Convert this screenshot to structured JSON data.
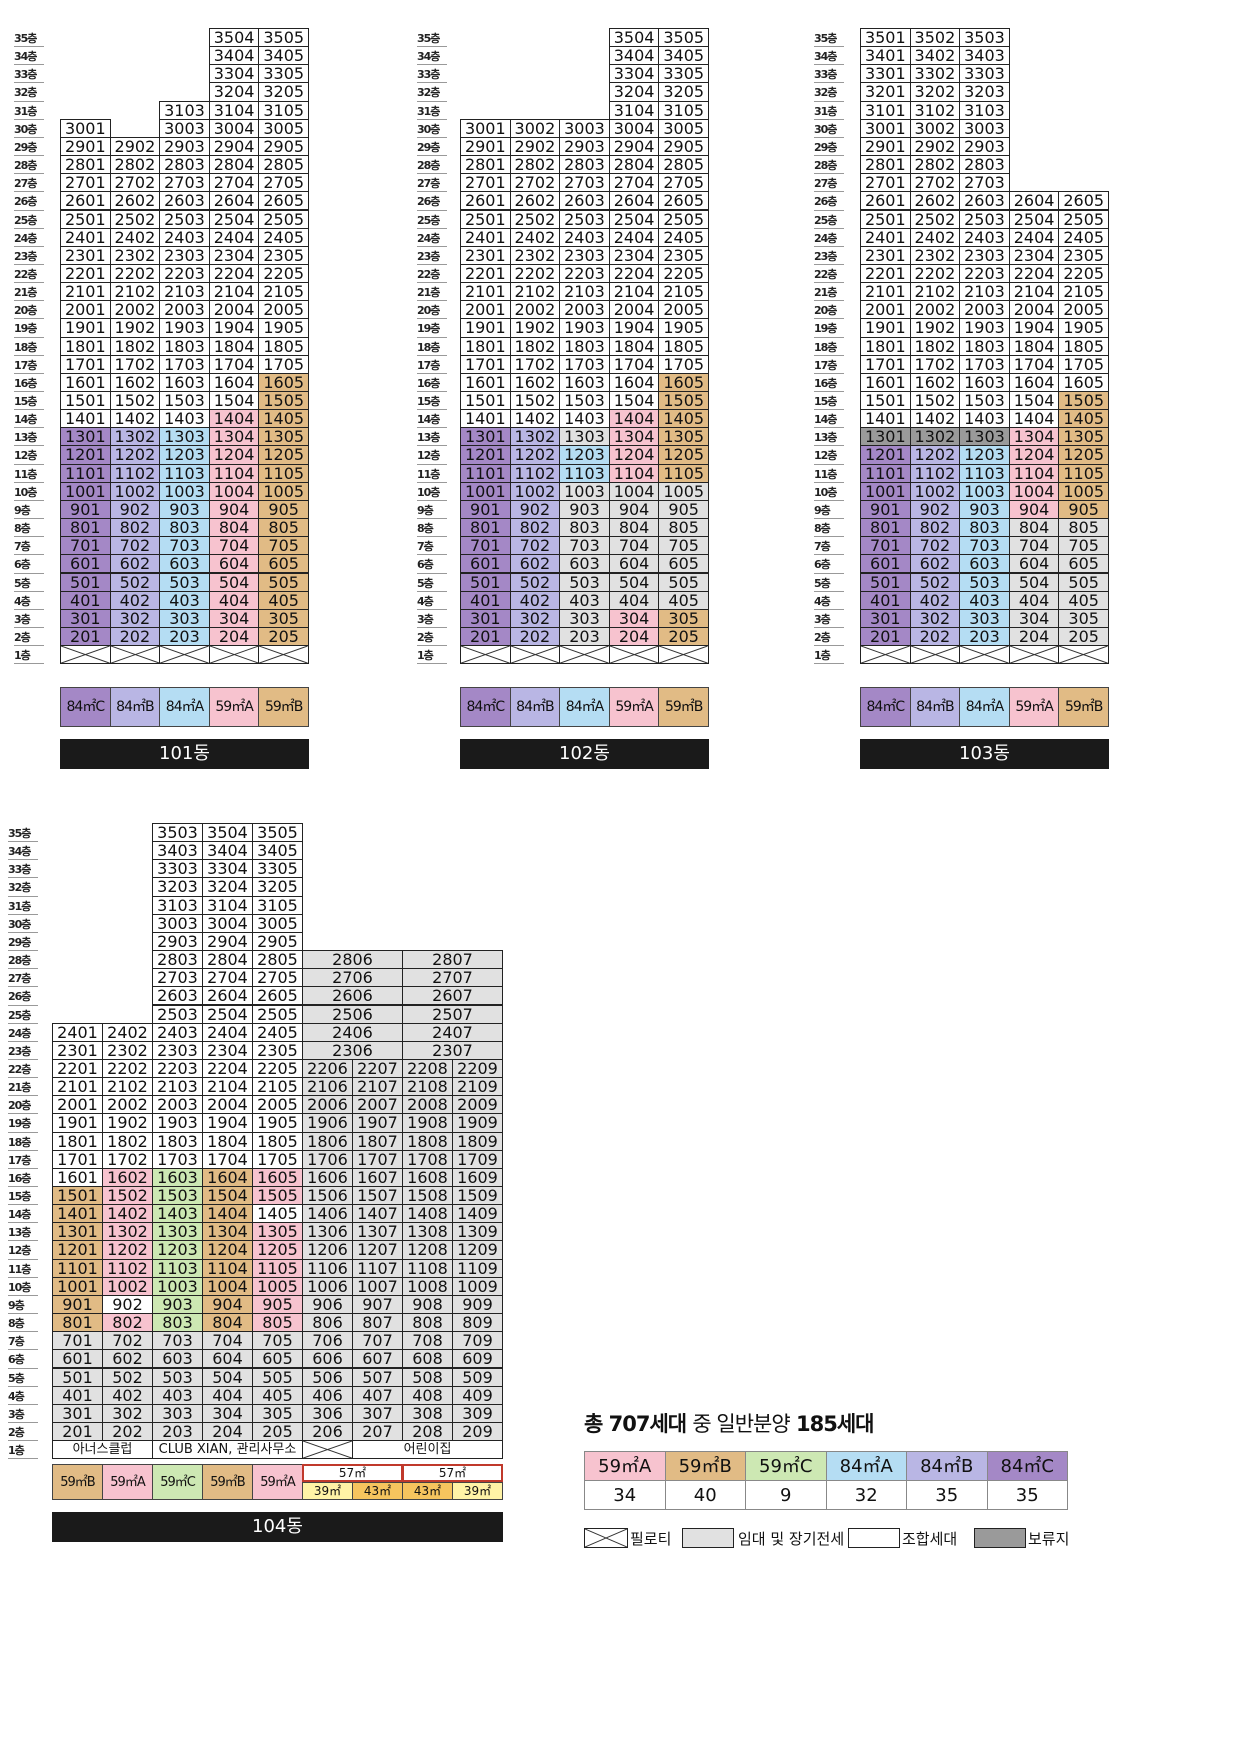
{
  "colors": {
    "59A": "#f7c3cf",
    "59B": "#e1bb85",
    "59C": "#cde8b3",
    "84A": "#b5ddf3",
    "84B": "#b9b6e4",
    "84C": "#a488c6",
    "rental": "#e1e1e1",
    "union": "#ffffff",
    "reserved": "#9a9a9a",
    "57m": "#ffffff",
    "39m": "#fff3a6",
    "43m": "#f6c45e",
    "barfill": "#1a1a1a"
  },
  "floor_labels": [
    "35층",
    "34층",
    "33층",
    "32층",
    "31층",
    "30층",
    "29층",
    "28층",
    "27층",
    "26층",
    "25층",
    "24층",
    "23층",
    "22층",
    "21층",
    "20층",
    "19층",
    "18층",
    "17층",
    "16층",
    "15층",
    "14층",
    "13층",
    "12층",
    "11층",
    "10층",
    "9층",
    "8층",
    "7층",
    "6층",
    "5층",
    "4층",
    "3층",
    "2층",
    "1층"
  ],
  "buildings": {
    "b101": {
      "name": "101동",
      "legend": [
        {
          "label": "84㎡C",
          "type": "84C"
        },
        {
          "label": "84㎡B",
          "type": "84B"
        },
        {
          "label": "84㎡A",
          "type": "84A"
        },
        {
          "label": "59㎡A",
          "type": "59A"
        },
        {
          "label": "59㎡B",
          "type": "59B"
        }
      ],
      "top": [
        30,
        29,
        31,
        35,
        35
      ],
      "special": {
        "1301": "84C",
        "1302": "84B",
        "1303": "84A",
        "1304": "59A",
        "1305": "59B",
        "1404": "59A",
        "1405": "59B",
        "1505": "59B",
        "1605": "59B"
      },
      "rent": []
    },
    "b102": {
      "name": "102동",
      "legend": [
        {
          "label": "84㎡C",
          "type": "84C"
        },
        {
          "label": "84㎡B",
          "type": "84B"
        },
        {
          "label": "84㎡A",
          "type": "84A"
        },
        {
          "label": "59㎡A",
          "type": "59A"
        },
        {
          "label": "59㎡B",
          "type": "59B"
        }
      ],
      "top": [
        30,
        30,
        30,
        35,
        35
      ],
      "special": {
        "1301": "84C",
        "1302": "84B",
        "1304": "59A",
        "1305": "59B",
        "1404": "59A",
        "1405": "59B",
        "1505": "59B",
        "1605": "59B"
      },
      "rent": [
        "1303",
        "1003",
        "903",
        "803",
        "703",
        "603",
        "503",
        "403",
        "303",
        "203",
        "1004",
        "904",
        "804",
        "704",
        "604",
        "504",
        "404",
        "1005",
        "905",
        "805",
        "705",
        "605",
        "505",
        "405"
      ]
    },
    "b103": {
      "name": "103동",
      "legend": [
        {
          "label": "84㎡C",
          "type": "84C"
        },
        {
          "label": "84㎡B",
          "type": "84B"
        },
        {
          "label": "84㎡A",
          "type": "84A"
        },
        {
          "label": "59㎡A",
          "type": "59A"
        },
        {
          "label": "59㎡B",
          "type": "59B"
        }
      ],
      "top": [
        35,
        35,
        35,
        26,
        26
      ],
      "special": {
        "1301": "R",
        "1302": "R",
        "1303": "R",
        "1304": "59A",
        "1305": "59B",
        "1405": "59B",
        "1505": "59B",
        "1004": "59A",
        "1005": "59B",
        "904": "59A",
        "905": "59B"
      },
      "rent": [
        "804",
        "704",
        "604",
        "504",
        "404",
        "304",
        "204",
        "805",
        "705",
        "605",
        "505",
        "405",
        "305",
        "205"
      ]
    },
    "b104": {
      "name": "104동",
      "first_floor": [
        "아너스클럽",
        "CLUB XIAN, 관리사무소",
        "어린이집"
      ],
      "legend": [
        {
          "label": "59㎡B",
          "type": "59B"
        },
        {
          "label": "59㎡A",
          "type": "59A"
        },
        {
          "label": "59㎡C",
          "type": "59C"
        },
        {
          "label": "59㎡B",
          "type": "59B"
        },
        {
          "label": "59㎡A",
          "type": "59A"
        }
      ],
      "legend57": [
        {
          "top": "57㎡",
          "left": "39㎡",
          "right": "43㎡"
        },
        {
          "top": "57㎡",
          "left": "43㎡",
          "right": "39㎡"
        }
      ],
      "tall_cols": [
        {
          "rows": {
            "28": "2806",
            "27": "2706",
            "26": "2606",
            "25": "2506",
            "24": "2406",
            "23": "2306"
          }
        },
        {
          "rows": {
            "28": "2807",
            "27": "2707",
            "26": "2607",
            "25": "2507",
            "24": "2407",
            "23": "2307"
          }
        }
      ]
    }
  },
  "summary": {
    "title_bold1": "총 707세대",
    "title_light": "중 일반분양",
    "title_bold2": "185세대",
    "types": [
      {
        "label": "59㎡A",
        "count": "34",
        "type": "59A"
      },
      {
        "label": "59㎡B",
        "count": "40",
        "type": "59B"
      },
      {
        "label": "59㎡C",
        "count": "9",
        "type": "59C"
      },
      {
        "label": "84㎡A",
        "count": "32",
        "type": "84A"
      },
      {
        "label": "84㎡B",
        "count": "35",
        "type": "84B"
      },
      {
        "label": "84㎡C",
        "count": "35",
        "type": "84C"
      }
    ]
  },
  "keys": [
    {
      "label": "필로티",
      "type": "piloti"
    },
    {
      "label": "임대 및 장기전세",
      "type": "rental"
    },
    {
      "label": "조합세대",
      "type": "union"
    },
    {
      "label": "보류지",
      "type": "reserved"
    }
  ]
}
